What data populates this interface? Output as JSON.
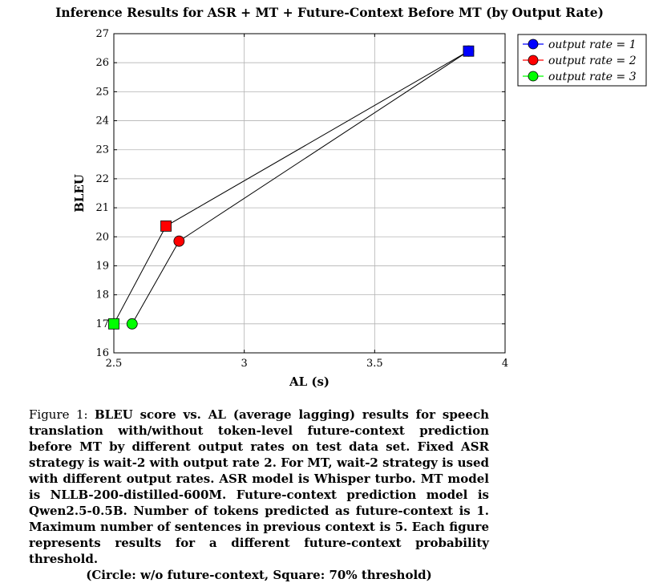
{
  "chart_data": {
    "type": "line",
    "title": "Inference Results for ASR + MT + Future-Context Before MT (by Output Rate)",
    "xlabel": "AL (s)",
    "ylabel": "BLEU",
    "xlim": [
      2.5,
      4
    ],
    "ylim": [
      16,
      27
    ],
    "xticks": [
      "2.5",
      "3",
      "3.5",
      "4"
    ],
    "yticks": [
      "16",
      "17",
      "18",
      "19",
      "20",
      "21",
      "22",
      "23",
      "24",
      "25",
      "26",
      "27"
    ],
    "grid": true,
    "legend_position": "outside-top-right",
    "series": [
      {
        "name": "output rate = 1",
        "color": "#0000ff",
        "points": [
          {
            "x": 3.86,
            "y": 26.4,
            "marker": "circle"
          },
          {
            "x": 3.86,
            "y": 26.4,
            "marker": "square"
          }
        ]
      },
      {
        "name": "output rate = 2",
        "color": "#ff0000",
        "points": [
          {
            "x": 2.75,
            "y": 19.85,
            "marker": "circle"
          },
          {
            "x": 2.7,
            "y": 20.37,
            "marker": "square"
          }
        ]
      },
      {
        "name": "output rate = 3",
        "color": "#00ff00",
        "points": [
          {
            "x": 2.57,
            "y": 17.0,
            "marker": "circle"
          },
          {
            "x": 2.5,
            "y": 17.0,
            "marker": "square"
          }
        ]
      }
    ],
    "connecting_lines": [
      {
        "marker": "circle",
        "order": [
          "output rate = 1",
          "output rate = 2",
          "output rate = 3"
        ]
      },
      {
        "marker": "square",
        "order": [
          "output rate = 1",
          "output rate = 2",
          "output rate = 3"
        ]
      }
    ]
  },
  "caption": {
    "label": "Figure 1:",
    "body": "BLEU score vs. AL (average lagging) results for speech translation with/without token-level future-context prediction before MT by different output rates on test data set. Fixed ASR strategy is wait-2 with output rate 2. For MT, wait-2 strategy is used with different output rates. ASR model is Whisper turbo. MT model is NLLB-200-distilled-600M. Future-context prediction model is Qwen2.5-0.5B. Number of tokens predicted as future-context is 1. Maximum number of sentences in previous context is 5. Each figure represents results for a different future-context probability threshold.",
    "last_line": "(Circle: w/o future-context, Square: 70% threshold)"
  }
}
